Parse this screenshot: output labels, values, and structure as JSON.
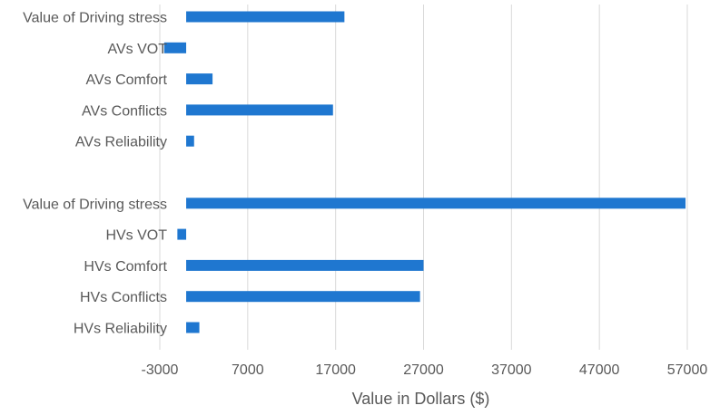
{
  "chart_data": {
    "type": "bar",
    "orientation": "horizontal",
    "categories": [
      "Value of Driving stress",
      "AVs VOT",
      "AVs Comfort",
      "AVs Conflicts",
      "AVs Reliability",
      "",
      "Value of Driving stress",
      "HVs VOT",
      "HVs Comfort",
      "HVs Conflicts",
      "HVs Reliability"
    ],
    "values": [
      18000,
      -2500,
      3000,
      16700,
      900,
      null,
      56800,
      -1000,
      27000,
      26600,
      1500
    ],
    "xlabel": "Value in Dollars ($)",
    "ylabel": "",
    "xlim": [
      -3000,
      57000
    ],
    "xticks": [
      -3000,
      7000,
      17000,
      27000,
      37000,
      47000,
      57000
    ],
    "xtick_labels": [
      "-3000",
      "7000",
      "17000",
      "27000",
      "37000",
      "47000",
      "57000"
    ],
    "grid": true,
    "bar_color": "#1f77d0"
  }
}
